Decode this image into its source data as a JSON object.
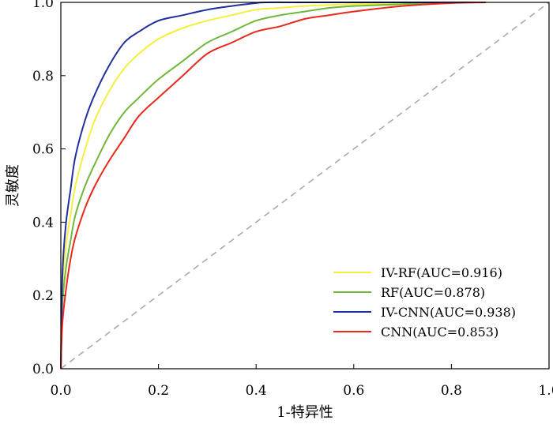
{
  "chart_data": {
    "type": "line",
    "title": "",
    "xlabel": "1-特异性",
    "ylabel": "灵敏度",
    "xlim": [
      0,
      1
    ],
    "ylim": [
      0,
      1
    ],
    "x_ticks": [
      "0.0",
      "0.2",
      "0.4",
      "0.6",
      "0.8",
      "1.0"
    ],
    "y_ticks": [
      "0.0",
      "0.2",
      "0.4",
      "0.6",
      "0.8",
      "1.0"
    ],
    "grid": false,
    "legend_position": "bottom-right",
    "reference_line": {
      "name": "chance",
      "style": "dashed",
      "color": "#aaaaaa",
      "x": [
        0,
        1
      ],
      "y": [
        0,
        1
      ]
    },
    "series": [
      {
        "name": "IV-RF(AUC=0.916)",
        "color": "#f5f03c",
        "x": [
          0,
          0.003,
          0.01,
          0.02,
          0.03,
          0.05,
          0.07,
          0.1,
          0.13,
          0.16,
          0.2,
          0.25,
          0.3,
          0.35,
          0.4,
          0.45,
          0.5,
          0.55,
          0.6,
          0.7,
          0.8,
          0.87
        ],
        "y": [
          0,
          0.22,
          0.33,
          0.42,
          0.5,
          0.6,
          0.68,
          0.76,
          0.82,
          0.86,
          0.9,
          0.93,
          0.95,
          0.965,
          0.98,
          0.985,
          0.99,
          0.993,
          0.995,
          0.998,
          1.0,
          1.0
        ]
      },
      {
        "name": "RF(AUC=0.878)",
        "color": "#70b83a",
        "x": [
          0,
          0.003,
          0.01,
          0.02,
          0.03,
          0.05,
          0.07,
          0.1,
          0.13,
          0.16,
          0.2,
          0.25,
          0.3,
          0.35,
          0.4,
          0.45,
          0.5,
          0.55,
          0.6,
          0.7,
          0.8,
          0.87
        ],
        "y": [
          0,
          0.17,
          0.27,
          0.35,
          0.42,
          0.5,
          0.56,
          0.64,
          0.7,
          0.74,
          0.79,
          0.84,
          0.89,
          0.92,
          0.95,
          0.965,
          0.975,
          0.985,
          0.99,
          0.995,
          1.0,
          1.0
        ]
      },
      {
        "name": "IV-CNN(AUC=0.938)",
        "color": "#1f2f9e",
        "x": [
          0,
          0.003,
          0.01,
          0.02,
          0.03,
          0.05,
          0.07,
          0.1,
          0.13,
          0.16,
          0.2,
          0.25,
          0.3,
          0.35,
          0.4,
          0.42,
          0.5,
          0.6,
          0.7,
          0.8,
          0.87
        ],
        "y": [
          0,
          0.25,
          0.39,
          0.49,
          0.58,
          0.68,
          0.75,
          0.83,
          0.89,
          0.92,
          0.95,
          0.965,
          0.98,
          0.99,
          0.998,
          1.0,
          1.0,
          1.0,
          1.0,
          1.0,
          1.0
        ]
      },
      {
        "name": "CNN(AUC=0.853)",
        "color": "#e8291c",
        "x": [
          0,
          0.003,
          0.01,
          0.02,
          0.03,
          0.05,
          0.07,
          0.1,
          0.13,
          0.16,
          0.2,
          0.25,
          0.3,
          0.35,
          0.4,
          0.45,
          0.5,
          0.55,
          0.6,
          0.7,
          0.8,
          0.87
        ],
        "y": [
          0,
          0.12,
          0.21,
          0.3,
          0.36,
          0.44,
          0.5,
          0.57,
          0.63,
          0.69,
          0.74,
          0.8,
          0.86,
          0.89,
          0.92,
          0.935,
          0.955,
          0.965,
          0.975,
          0.99,
          0.998,
          1.0
        ]
      }
    ]
  }
}
